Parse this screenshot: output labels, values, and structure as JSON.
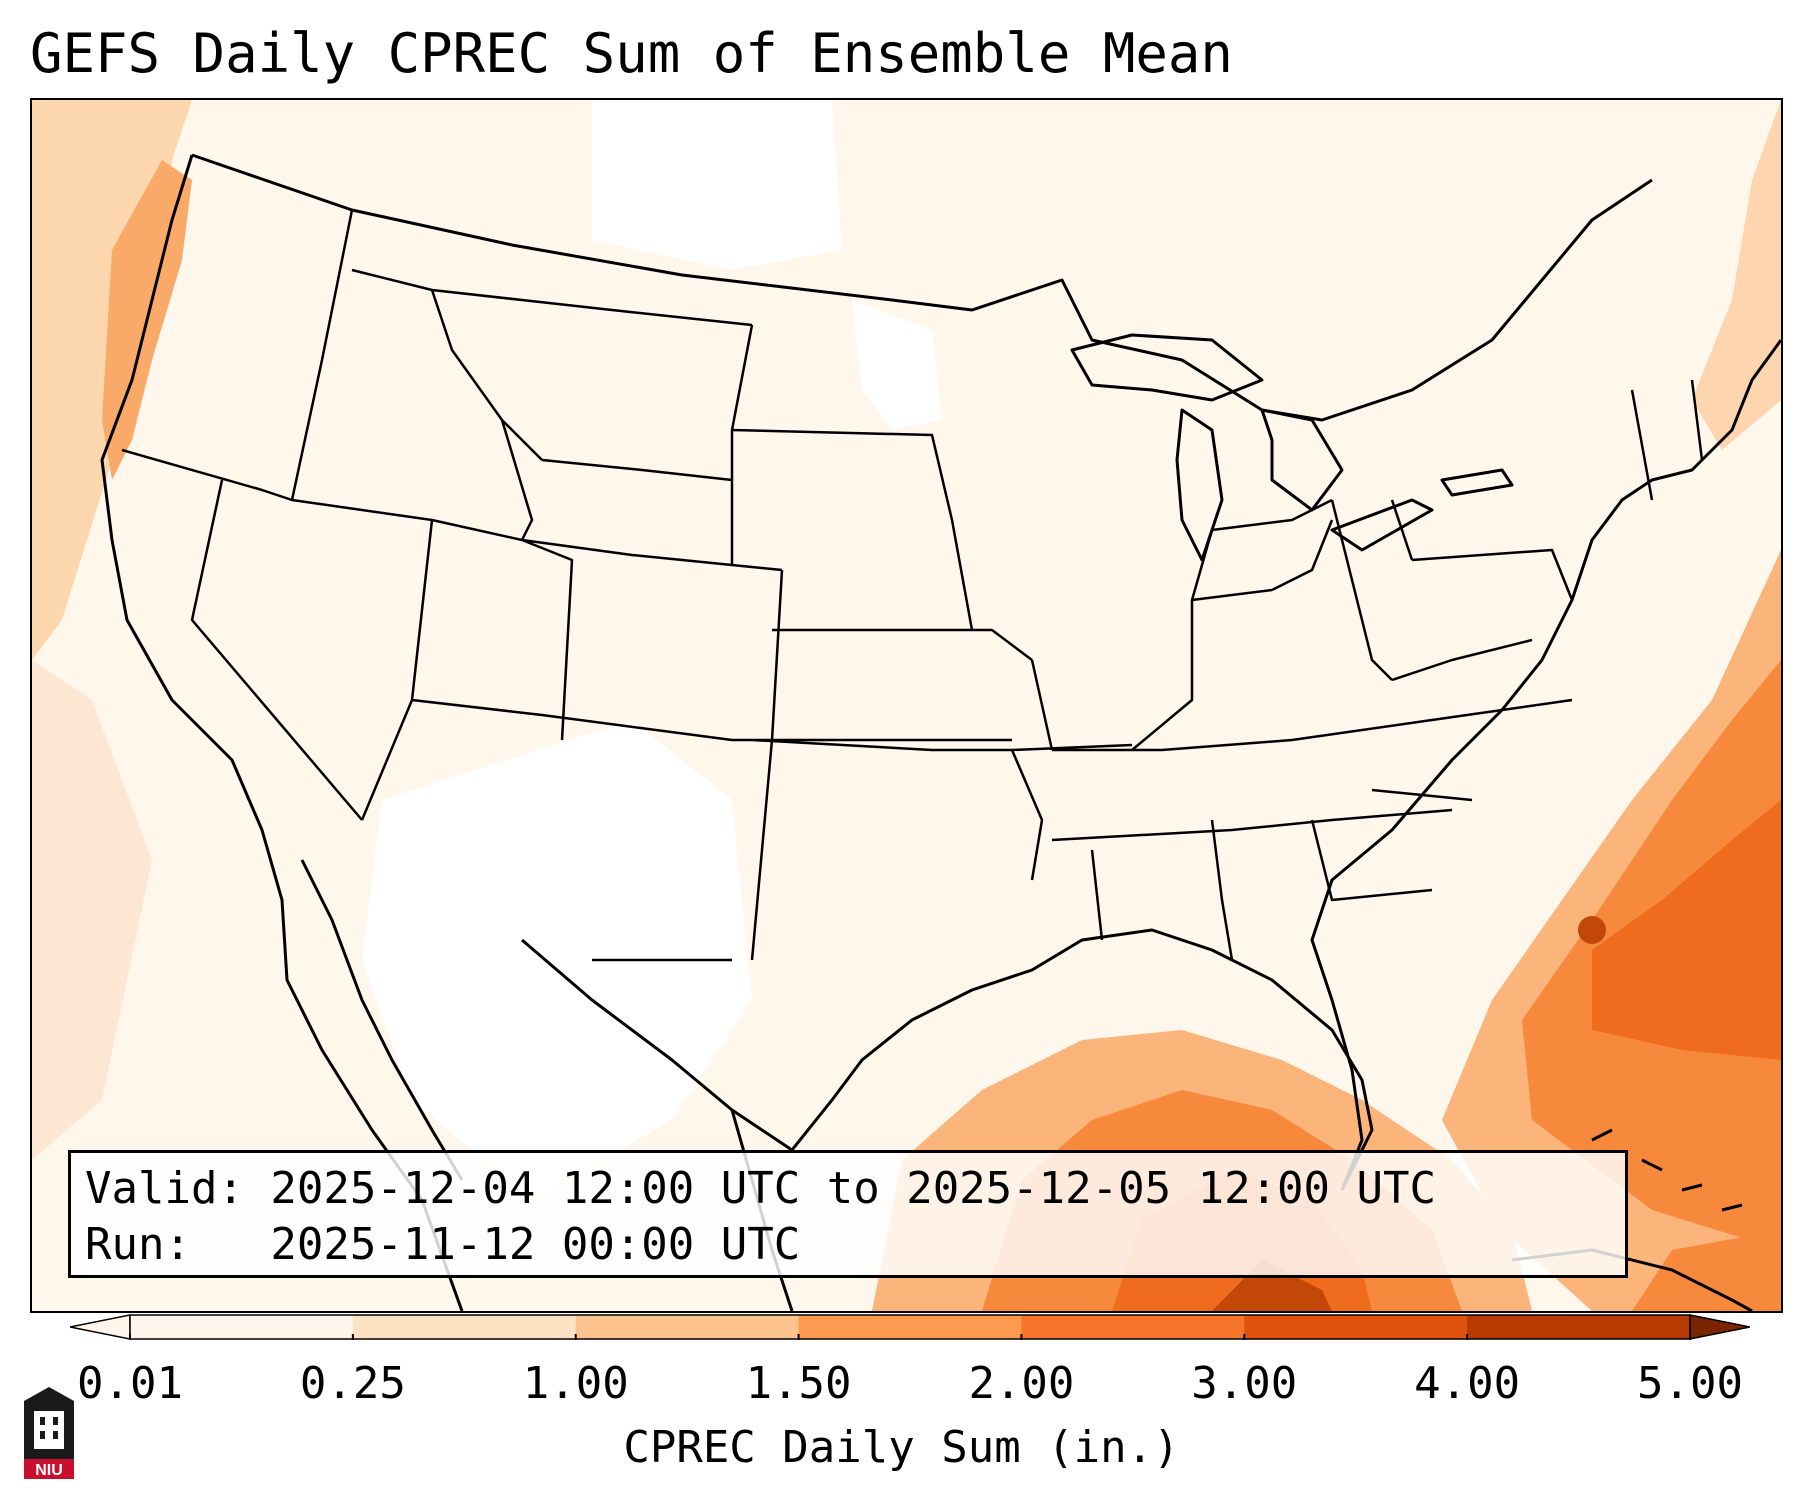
{
  "title": "GEFS Daily CPREC Sum of Ensemble Mean",
  "info": {
    "valid_line": "Valid: 2025-12-04 12:00 UTC to 2025-12-05 12:00 UTC",
    "run_line": "Run:   2025-11-12 00:00 UTC"
  },
  "colorbar": {
    "label": "CPREC Daily Sum (in.)",
    "ticks": [
      "0.01",
      "0.25",
      "1.00",
      "1.50",
      "2.00",
      "3.00",
      "4.00",
      "5.00"
    ],
    "colors": [
      "#fff5eb",
      "#fde2c4",
      "#fdc38f",
      "#fd9a50",
      "#f5762a",
      "#e0530f",
      "#b83a03",
      "#7a2402"
    ]
  },
  "logo": {
    "text": "NIU",
    "colors": {
      "red": "#c8102e",
      "black": "#1a1a1a"
    }
  },
  "map": {
    "projection": "Lambert Conformal, CONUS",
    "colors": {
      "coast_line": "#000000",
      "border_line": "#000000"
    }
  }
}
